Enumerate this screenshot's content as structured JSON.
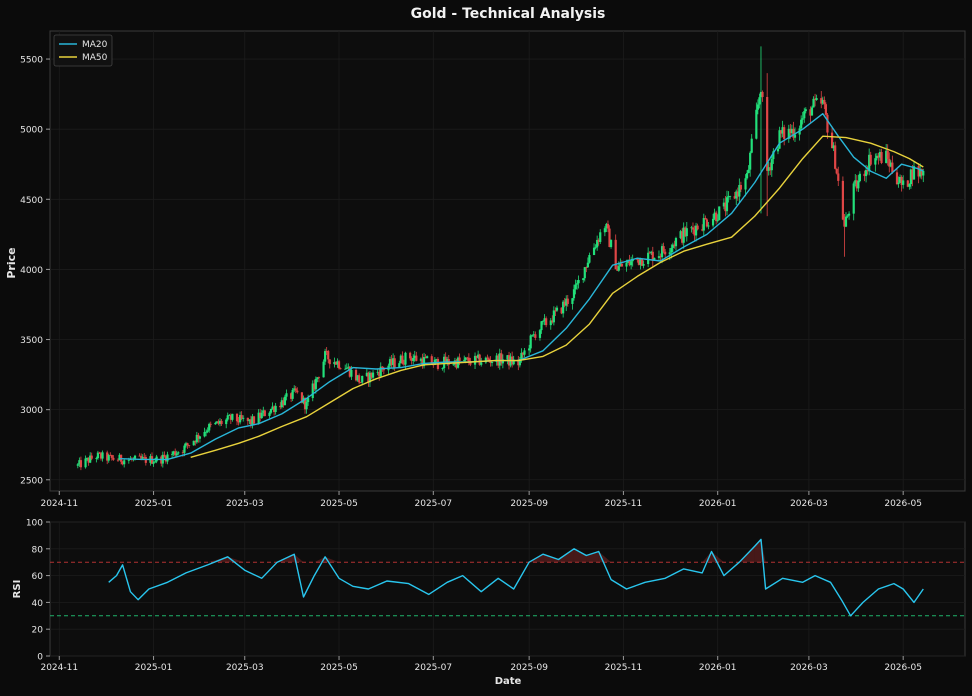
{
  "figure": {
    "title": "Gold - Technical Analysis"
  },
  "colors": {
    "background": "#0b0b0b",
    "panel": "#0d0d0d",
    "grid": "#1c1c1c",
    "axis": "#3a3a3a",
    "text": "#e6e6e6",
    "up_candle": "#22e07a",
    "down_candle": "#e04646",
    "ma20": "#29b6d8",
    "ma50": "#e8d23c",
    "rsi": "#29c6ee",
    "overbought": "#b23232",
    "oversold": "#1fb36b"
  },
  "chart_data": [
    {
      "type": "candlestick",
      "title": "Gold - Technical Analysis",
      "xlabel": "",
      "ylabel": "Price",
      "xlim": [
        "2024-10-26",
        "2026-06-10"
      ],
      "ylim": [
        2420,
        5700
      ],
      "x_ticks": [
        "2024-11",
        "2025-01",
        "2025-03",
        "2025-05",
        "2025-07",
        "2025-09",
        "2025-11",
        "2026-01",
        "2026-03",
        "2026-05"
      ],
      "y_ticks": [
        2500,
        3000,
        3500,
        4000,
        4500,
        5000,
        5500
      ],
      "grid": true,
      "legend": {
        "position": "top-left",
        "entries": [
          "MA20",
          "MA50"
        ]
      },
      "price_path": {
        "dates": [
          "2024-11-13",
          "2024-11-25",
          "2024-12-05",
          "2024-12-20",
          "2025-01-05",
          "2025-01-20",
          "2025-02-05",
          "2025-02-20",
          "2025-03-05",
          "2025-03-20",
          "2025-04-03",
          "2025-04-10",
          "2025-04-22",
          "2025-05-05",
          "2025-05-15",
          "2025-06-01",
          "2025-06-15",
          "2025-07-01",
          "2025-07-15",
          "2025-08-01",
          "2025-08-15",
          "2025-08-25",
          "2025-09-05",
          "2025-09-20",
          "2025-10-01",
          "2025-10-10",
          "2025-10-20",
          "2025-10-28",
          "2025-11-10",
          "2025-11-25",
          "2025-12-10",
          "2025-12-25",
          "2026-01-05",
          "2026-01-20",
          "2026-01-29",
          "2026-02-02",
          "2026-02-10",
          "2026-02-20",
          "2026-03-02",
          "2026-03-10",
          "2026-03-18",
          "2026-03-24",
          "2026-03-30",
          "2026-04-10",
          "2026-04-20",
          "2026-05-01",
          "2026-05-07",
          "2026-05-14"
        ],
        "close": [
          2600,
          2670,
          2650,
          2640,
          2645,
          2720,
          2870,
          2935,
          2910,
          3020,
          3120,
          3030,
          3380,
          3310,
          3200,
          3310,
          3380,
          3330,
          3340,
          3350,
          3360,
          3330,
          3550,
          3700,
          3850,
          4100,
          4320,
          4010,
          4070,
          4120,
          4250,
          4350,
          4430,
          4650,
          5320,
          4700,
          4950,
          5000,
          5150,
          5180,
          4780,
          4300,
          4560,
          4800,
          4800,
          4580,
          4700,
          4690
        ]
      },
      "series": [
        {
          "name": "MA20",
          "dates": [
            "2024-12-10",
            "2024-12-25",
            "2025-01-10",
            "2025-01-25",
            "2025-02-10",
            "2025-02-25",
            "2025-03-10",
            "2025-03-25",
            "2025-04-10",
            "2025-04-25",
            "2025-05-10",
            "2025-05-25",
            "2025-06-10",
            "2025-06-25",
            "2025-07-10",
            "2025-07-25",
            "2025-08-10",
            "2025-08-25",
            "2025-09-10",
            "2025-09-25",
            "2025-10-10",
            "2025-10-25",
            "2025-11-10",
            "2025-11-25",
            "2025-12-10",
            "2025-12-25",
            "2026-01-10",
            "2026-01-25",
            "2026-02-10",
            "2026-02-25",
            "2026-03-10",
            "2026-03-20",
            "2026-03-30",
            "2026-04-10",
            "2026-04-20",
            "2026-04-30",
            "2026-05-10",
            "2026-05-14"
          ],
          "values": [
            2650,
            2645,
            2645,
            2690,
            2790,
            2870,
            2900,
            2970,
            3080,
            3200,
            3300,
            3290,
            3300,
            3330,
            3340,
            3340,
            3350,
            3350,
            3420,
            3580,
            3790,
            4030,
            4080,
            4060,
            4160,
            4250,
            4400,
            4620,
            4900,
            5000,
            5110,
            4950,
            4800,
            4700,
            4650,
            4750,
            4720,
            4700
          ]
        },
        {
          "name": "MA50",
          "dates": [
            "2025-01-25",
            "2025-02-10",
            "2025-02-25",
            "2025-03-10",
            "2025-03-25",
            "2025-04-10",
            "2025-04-25",
            "2025-05-10",
            "2025-05-25",
            "2025-06-10",
            "2025-06-25",
            "2025-07-10",
            "2025-07-25",
            "2025-08-10",
            "2025-08-25",
            "2025-09-10",
            "2025-09-25",
            "2025-10-10",
            "2025-10-25",
            "2025-11-10",
            "2025-11-25",
            "2025-12-10",
            "2025-12-25",
            "2026-01-10",
            "2026-01-25",
            "2026-02-10",
            "2026-02-25",
            "2026-03-10",
            "2026-03-25",
            "2026-04-10",
            "2026-04-25",
            "2026-05-05",
            "2026-05-14"
          ],
          "values": [
            2660,
            2710,
            2760,
            2810,
            2880,
            2950,
            3050,
            3150,
            3220,
            3280,
            3320,
            3330,
            3340,
            3350,
            3350,
            3380,
            3460,
            3610,
            3830,
            3950,
            4050,
            4130,
            4180,
            4230,
            4380,
            4580,
            4790,
            4950,
            4940,
            4900,
            4840,
            4790,
            4730
          ]
        }
      ]
    },
    {
      "type": "line",
      "xlabel": "Date",
      "ylabel": "RSI",
      "xlim": [
        "2024-10-26",
        "2026-06-10"
      ],
      "ylim": [
        0,
        100
      ],
      "x_ticks": [
        "2024-11",
        "2025-01",
        "2025-03",
        "2025-05",
        "2025-07",
        "2025-09",
        "2025-11",
        "2026-01",
        "2026-03",
        "2026-05"
      ],
      "y_ticks": [
        0,
        20,
        40,
        60,
        80,
        100
      ],
      "grid": true,
      "reference_lines": [
        70,
        30
      ],
      "series": [
        {
          "name": "RSI",
          "dates": [
            "2024-12-03",
            "2024-12-08",
            "2024-12-12",
            "2024-12-17",
            "2024-12-22",
            "2024-12-29",
            "2025-01-10",
            "2025-01-22",
            "2025-02-05",
            "2025-02-18",
            "2025-03-01",
            "2025-03-12",
            "2025-03-22",
            "2025-04-02",
            "2025-04-08",
            "2025-04-15",
            "2025-04-22",
            "2025-05-01",
            "2025-05-10",
            "2025-05-20",
            "2025-06-01",
            "2025-06-15",
            "2025-06-28",
            "2025-07-10",
            "2025-07-20",
            "2025-08-01",
            "2025-08-12",
            "2025-08-22",
            "2025-09-01",
            "2025-09-10",
            "2025-09-20",
            "2025-09-30",
            "2025-10-08",
            "2025-10-16",
            "2025-10-24",
            "2025-11-03",
            "2025-11-15",
            "2025-11-28",
            "2025-12-10",
            "2025-12-22",
            "2025-12-28",
            "2026-01-05",
            "2026-01-15",
            "2026-01-25",
            "2026-01-29",
            "2026-02-01",
            "2026-02-12",
            "2026-02-25",
            "2026-03-05",
            "2026-03-15",
            "2026-03-22",
            "2026-03-28",
            "2026-04-05",
            "2026-04-15",
            "2026-04-25",
            "2026-05-01",
            "2026-05-08",
            "2026-05-14"
          ],
          "values": [
            55,
            60,
            68,
            48,
            42,
            50,
            55,
            62,
            68,
            74,
            64,
            58,
            70,
            76,
            44,
            60,
            74,
            58,
            52,
            50,
            56,
            54,
            46,
            55,
            60,
            48,
            58,
            50,
            70,
            76,
            72,
            80,
            75,
            78,
            57,
            50,
            55,
            58,
            65,
            62,
            78,
            60,
            70,
            82,
            87,
            50,
            58,
            55,
            60,
            55,
            42,
            30,
            40,
            50,
            54,
            50,
            40,
            50
          ]
        }
      ]
    }
  ]
}
